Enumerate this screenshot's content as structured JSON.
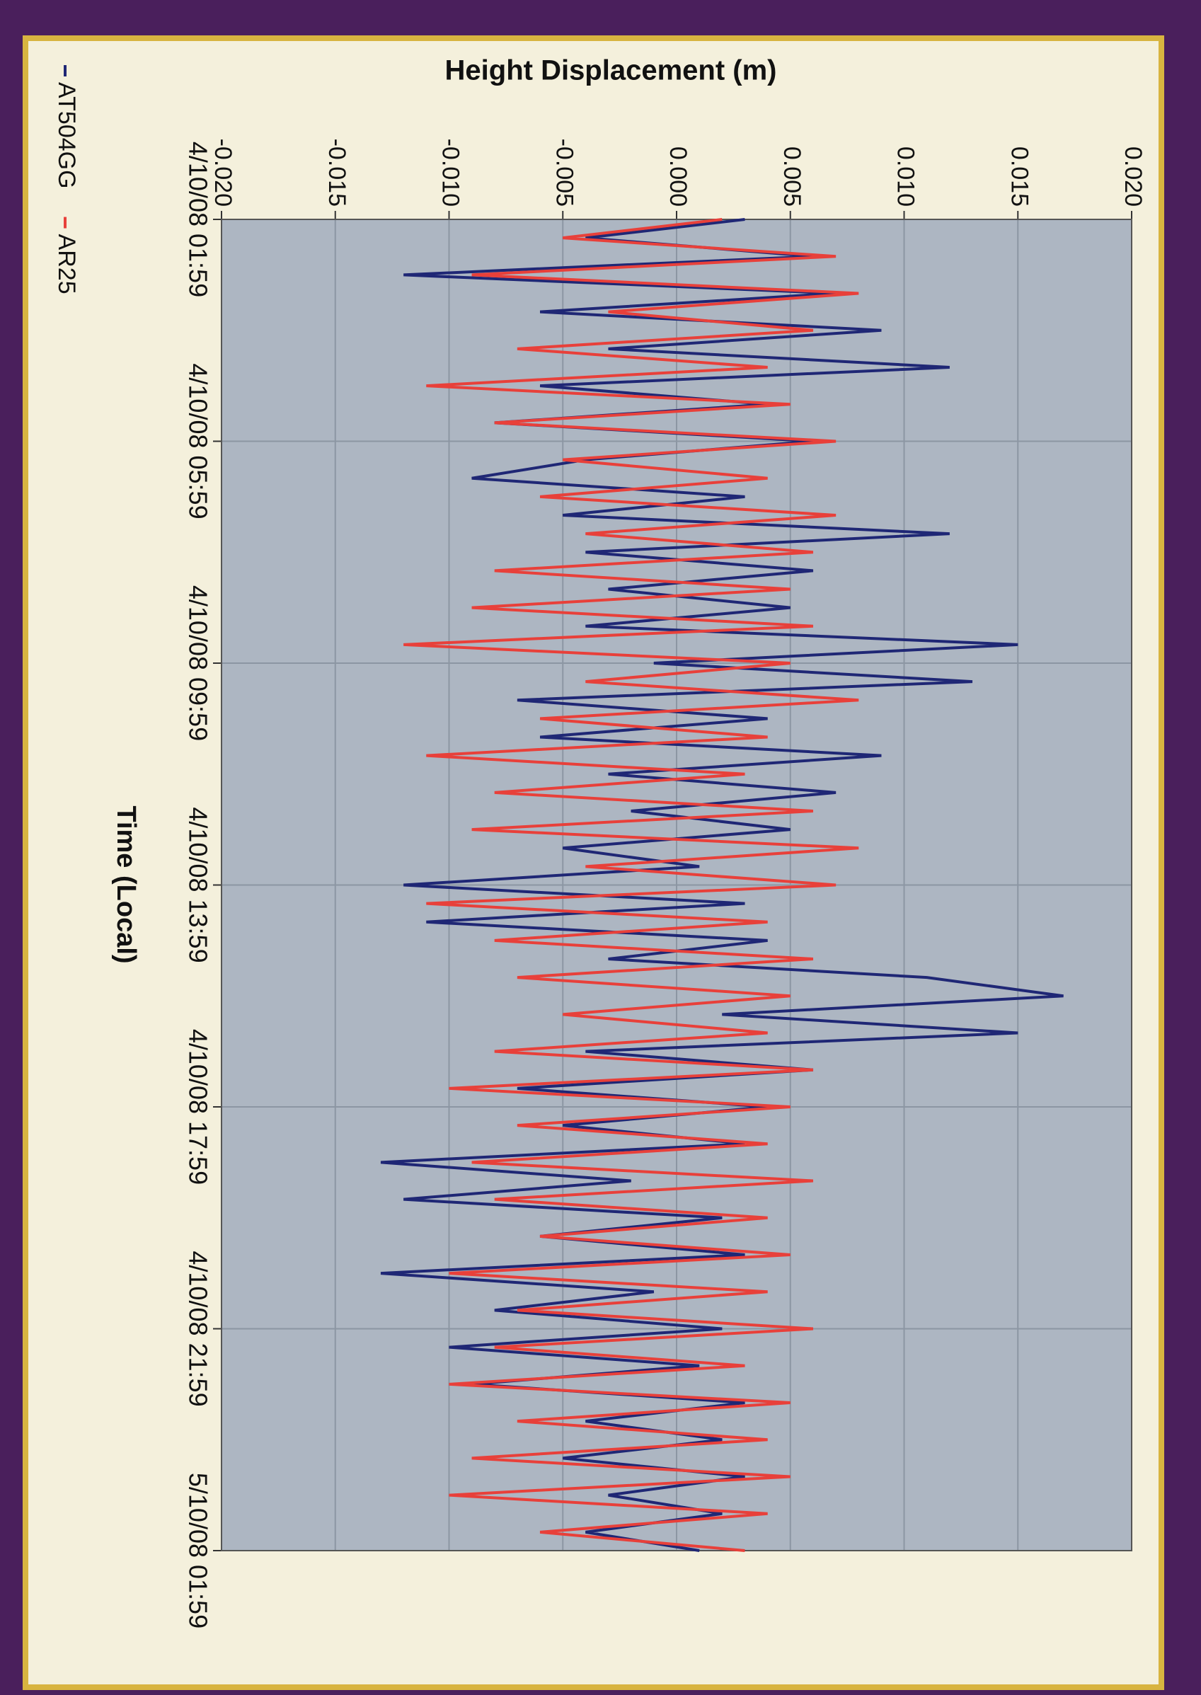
{
  "chart_data": {
    "type": "line",
    "y_label": "Height Displacement (m)",
    "x_label": "Time (Local)",
    "x": [
      "4/10/08 01:59",
      "4/10/08 02:19",
      "4/10/08 02:39",
      "4/10/08 02:59",
      "4/10/08 03:19",
      "4/10/08 03:39",
      "4/10/08 03:59",
      "4/10/08 04:19",
      "4/10/08 04:39",
      "4/10/08 04:59",
      "4/10/08 05:19",
      "4/10/08 05:39",
      "4/10/08 05:59",
      "4/10/08 06:19",
      "4/10/08 06:39",
      "4/10/08 06:59",
      "4/10/08 07:19",
      "4/10/08 07:39",
      "4/10/08 07:59",
      "4/10/08 08:19",
      "4/10/08 08:39",
      "4/10/08 08:59",
      "4/10/08 09:19",
      "4/10/08 09:39",
      "4/10/08 09:59",
      "4/10/08 10:19",
      "4/10/08 10:39",
      "4/10/08 10:59",
      "4/10/08 11:19",
      "4/10/08 11:39",
      "4/10/08 11:59",
      "4/10/08 12:19",
      "4/10/08 12:39",
      "4/10/08 12:59",
      "4/10/08 13:19",
      "4/10/08 13:39",
      "4/10/08 13:59",
      "4/10/08 14:19",
      "4/10/08 14:39",
      "4/10/08 14:59",
      "4/10/08 15:19",
      "4/10/08 15:39",
      "4/10/08 15:59",
      "4/10/08 16:19",
      "4/10/08 16:39",
      "4/10/08 16:59",
      "4/10/08 17:19",
      "4/10/08 17:39",
      "4/10/08 17:59",
      "4/10/08 18:19",
      "4/10/08 18:39",
      "4/10/08 18:59",
      "4/10/08 19:19",
      "4/10/08 19:39",
      "4/10/08 19:59",
      "4/10/08 20:19",
      "4/10/08 20:39",
      "4/10/08 20:59",
      "4/10/08 21:19",
      "4/10/08 21:39",
      "4/10/08 21:59",
      "4/10/08 22:19",
      "4/10/08 22:39",
      "4/10/08 22:59",
      "4/10/08 23:19",
      "4/10/08 23:39",
      "4/10/08 23:59",
      "5/10/08 00:19",
      "5/10/08 00:39",
      "5/10/08 00:59",
      "5/10/08 01:19",
      "5/10/08 01:39",
      "5/10/08 01:59"
    ],
    "series": [
      {
        "name": "AT504GG",
        "color": "#1f2775",
        "values": [
          0.003,
          -0.004,
          0.006,
          -0.012,
          0.007,
          -0.006,
          0.009,
          -0.003,
          0.012,
          -0.006,
          0.004,
          -0.008,
          0.006,
          -0.004,
          -0.009,
          0.003,
          -0.005,
          0.012,
          -0.004,
          0.006,
          -0.003,
          0.005,
          -0.004,
          0.015,
          -0.001,
          0.013,
          -0.007,
          0.004,
          -0.006,
          0.009,
          -0.003,
          0.007,
          -0.002,
          0.005,
          -0.005,
          0.001,
          -0.012,
          0.003,
          -0.011,
          0.004,
          -0.003,
          0.011,
          0.017,
          0.002,
          0.015,
          -0.004,
          0.006,
          -0.007,
          0.004,
          -0.005,
          0.003,
          -0.013,
          -0.002,
          -0.012,
          0.002,
          -0.006,
          0.003,
          -0.013,
          -0.001,
          -0.008,
          0.002,
          -0.01,
          0.001,
          -0.009,
          0.003,
          -0.004,
          0.002,
          -0.005,
          0.003,
          -0.003,
          0.002,
          -0.004,
          0.001
        ]
      },
      {
        "name": "AR25",
        "color": "#e8403a",
        "values": [
          0.002,
          -0.005,
          0.007,
          -0.009,
          0.008,
          -0.003,
          0.006,
          -0.007,
          0.004,
          -0.011,
          0.005,
          -0.008,
          0.007,
          -0.005,
          0.004,
          -0.006,
          0.007,
          -0.004,
          0.006,
          -0.008,
          0.005,
          -0.009,
          0.006,
          -0.012,
          0.005,
          -0.004,
          0.008,
          -0.006,
          0.004,
          -0.011,
          0.003,
          -0.008,
          0.006,
          -0.009,
          0.008,
          -0.004,
          0.007,
          -0.011,
          0.004,
          -0.008,
          0.006,
          -0.007,
          0.005,
          -0.005,
          0.004,
          -0.008,
          0.006,
          -0.01,
          0.005,
          -0.007,
          0.004,
          -0.009,
          0.006,
          -0.008,
          0.004,
          -0.006,
          0.005,
          -0.01,
          0.004,
          -0.007,
          0.006,
          -0.008,
          0.003,
          -0.01,
          0.005,
          -0.007,
          0.004,
          -0.009,
          0.005,
          -0.01,
          0.004,
          -0.006,
          0.003
        ]
      }
    ],
    "xlim": [
      "4/10/08 01:59",
      "5/10/08 01:59"
    ],
    "xticks": [
      "4/10/08 01:59",
      "4/10/08 05:59",
      "4/10/08 09:59",
      "4/10/08 13:59",
      "4/10/08 17:59",
      "4/10/08 21:59",
      "5/10/08 01:59"
    ],
    "ylim": [
      -0.02,
      0.02
    ],
    "yticks": [
      {
        "value": -0.02,
        "label": "-0.020"
      },
      {
        "value": -0.015,
        "label": "-0.015"
      },
      {
        "value": -0.01,
        "label": "-0.010"
      },
      {
        "value": -0.005,
        "label": "-0.005"
      },
      {
        "value": 0,
        "label": "0.000"
      },
      {
        "value": 0.005,
        "label": "0.005"
      },
      {
        "value": 0.01,
        "label": "0.010"
      },
      {
        "value": 0.015,
        "label": "0.015"
      },
      {
        "value": 0.02,
        "label": "0.020"
      }
    ],
    "grid": true
  }
}
